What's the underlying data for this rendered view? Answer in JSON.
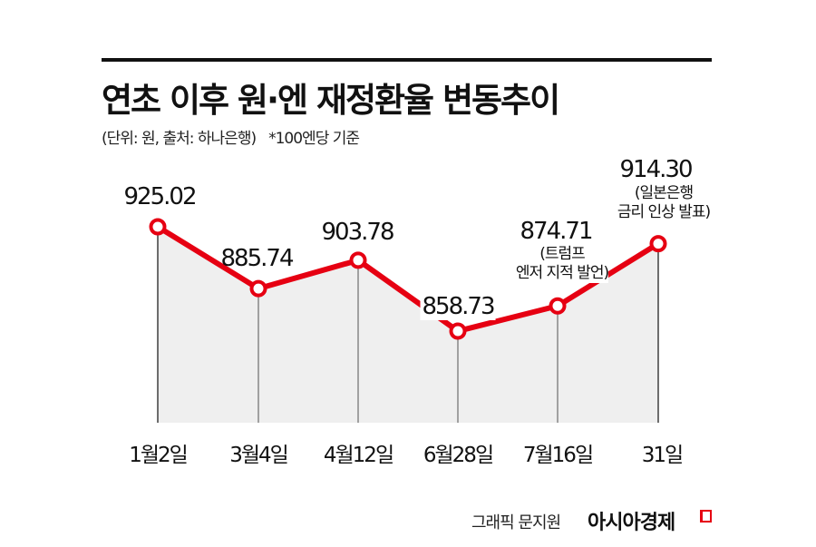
{
  "header": {
    "title": "연초 이후 원·엔 재정환율 변동추이",
    "subtitle": "(단위: 원, 출처: 하나은행)",
    "note": "*100엔당 기준"
  },
  "colors": {
    "line": "#e60012",
    "area": "#efefef",
    "dropline": "#777777"
  },
  "chart_data": {
    "type": "line",
    "title": "연초 이후 원·엔 재정환율 변동추이",
    "subtitle": "(단위: 원, 출처: 하나은행) *100엔당 기준",
    "xlabel": "",
    "ylabel": "원 (100엔당)",
    "categories": [
      "1월2일",
      "3월4일",
      "4월12일",
      "6월28일",
      "7월16일",
      "31일"
    ],
    "values": [
      925.02,
      885.74,
      903.78,
      858.73,
      874.71,
      914.3
    ],
    "value_labels": [
      "925.02",
      "885.74",
      "903.78",
      "858.73",
      "874.71",
      "914.30"
    ],
    "annotations": [
      {
        "index": 4,
        "lines": [
          "(트럼프",
          "엔저 지적 발언)"
        ]
      },
      {
        "index": 5,
        "lines": [
          "(일본은행",
          "금리 인상 발표)"
        ]
      }
    ],
    "grid": false,
    "legend": "none"
  },
  "footer": {
    "credit": "그래픽 문지원",
    "brand": "아시아경제"
  }
}
